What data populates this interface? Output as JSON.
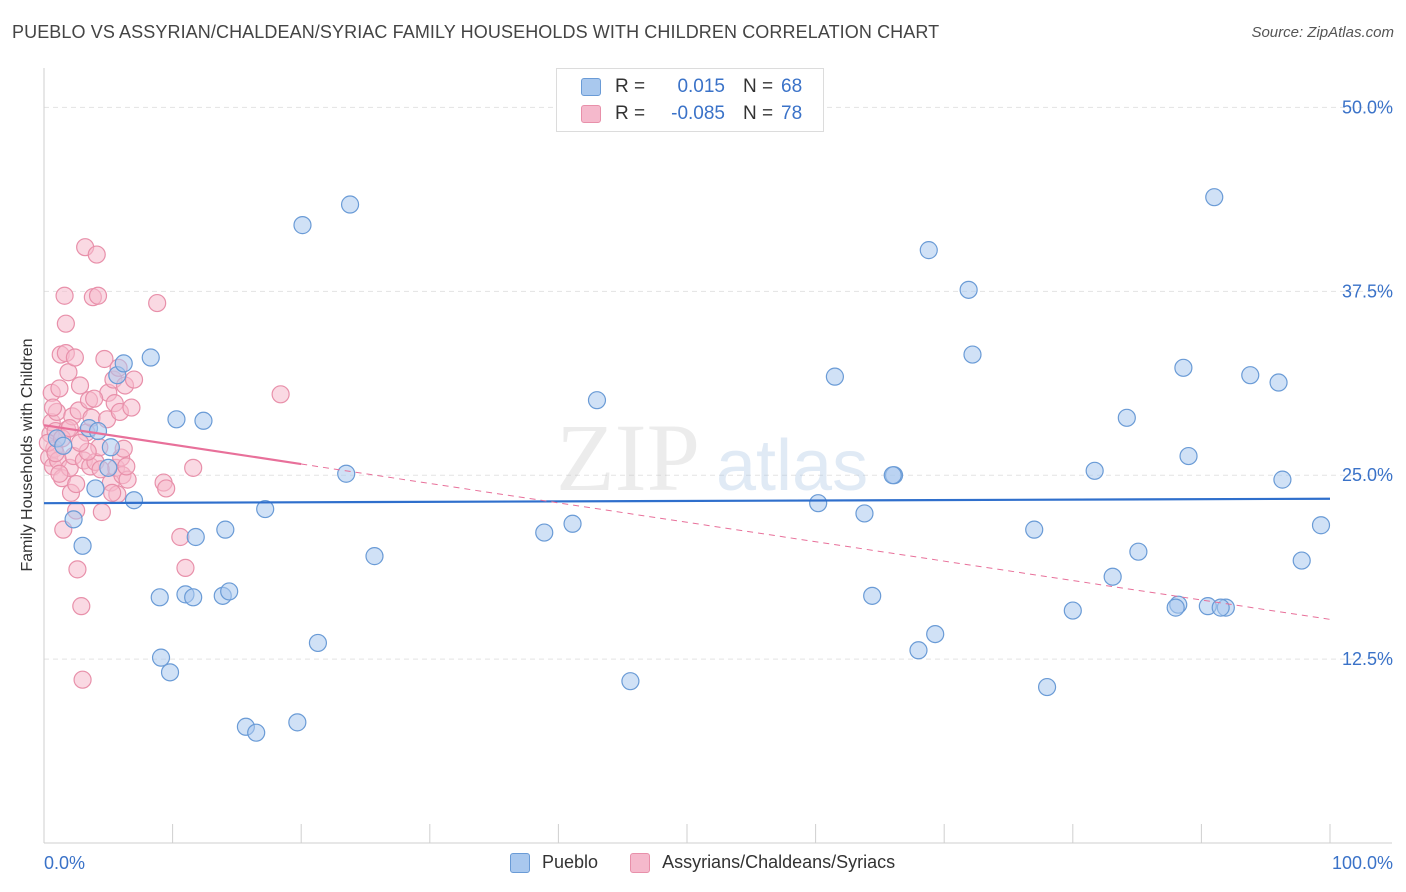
{
  "header": {
    "title": "PUEBLO VS ASSYRIAN/CHALDEAN/SYRIAC FAMILY HOUSEHOLDS WITH CHILDREN CORRELATION CHART",
    "source": "Source: ZipAtlas.com"
  },
  "watermark": {
    "zip": "ZIP",
    "atlas": "atlas"
  },
  "legend": {
    "rows": [
      {
        "r_label": "R =",
        "r_value": "0.015",
        "n_label": "N =",
        "n_value": "68"
      },
      {
        "r_label": "R =",
        "r_value": "-0.085",
        "n_label": "N =",
        "n_value": "78"
      }
    ]
  },
  "colors": {
    "pueblo_fill": "#a9c8ee",
    "pueblo_stroke": "#6a9bd6",
    "pueblo_line": "#2f6fcc",
    "assyrian_fill": "#f5b9cc",
    "assyrian_stroke": "#e890aa",
    "assyrian_line": "#e8709a",
    "tick_label": "#3a72c8",
    "grid": "#e3e3e3"
  },
  "chart_data": {
    "type": "scatter",
    "title": "PUEBLO VS ASSYRIAN/CHALDEAN/SYRIAC FAMILY HOUSEHOLDS WITH CHILDREN CORRELATION CHART",
    "xlabel": "",
    "ylabel": "Family Households with Children",
    "xlim": [
      0,
      100
    ],
    "ylim": [
      0,
      52
    ],
    "x_tick_labels": [
      {
        "value": 0,
        "label": "0.0%"
      },
      {
        "value": 100,
        "label": "100.0%"
      }
    ],
    "y_ticks": [
      {
        "value": 12.5,
        "label": "12.5%"
      },
      {
        "value": 25,
        "label": "25.0%"
      },
      {
        "value": 37.5,
        "label": "37.5%"
      },
      {
        "value": 50,
        "label": "50.0%"
      }
    ],
    "series": [
      {
        "name": "Pueblo",
        "r": 0.015,
        "n": 68,
        "trend": {
          "x": [
            0,
            100
          ],
          "y": [
            23.1,
            23.4
          ],
          "dashed_from": null
        },
        "points": [
          [
            1.0,
            27.5
          ],
          [
            1.5,
            27.0
          ],
          [
            2.3,
            22.0
          ],
          [
            3.0,
            20.2
          ],
          [
            3.5,
            28.2
          ],
          [
            4.0,
            24.1
          ],
          [
            4.2,
            28.0
          ],
          [
            5.0,
            25.5
          ],
          [
            5.2,
            26.9
          ],
          [
            5.7,
            31.8
          ],
          [
            6.2,
            32.6
          ],
          [
            7.0,
            23.3
          ],
          [
            8.3,
            33.0
          ],
          [
            9.0,
            16.7
          ],
          [
            9.1,
            12.6
          ],
          [
            9.8,
            11.6
          ],
          [
            10.3,
            28.8
          ],
          [
            11.0,
            16.9
          ],
          [
            11.6,
            16.7
          ],
          [
            11.8,
            20.8
          ],
          [
            12.4,
            28.7
          ],
          [
            13.9,
            16.8
          ],
          [
            14.1,
            21.3
          ],
          [
            14.4,
            17.1
          ],
          [
            15.7,
            7.9
          ],
          [
            16.5,
            7.5
          ],
          [
            17.2,
            22.7
          ],
          [
            19.7,
            8.2
          ],
          [
            20.1,
            42.0
          ],
          [
            21.3,
            13.6
          ],
          [
            23.5,
            25.1
          ],
          [
            23.8,
            43.4
          ],
          [
            25.7,
            19.5
          ],
          [
            38.9,
            21.1
          ],
          [
            41.1,
            21.7
          ],
          [
            43.0,
            30.1
          ],
          [
            45.6,
            11.0
          ],
          [
            60.2,
            23.1
          ],
          [
            61.5,
            31.7
          ],
          [
            63.8,
            22.4
          ],
          [
            64.4,
            16.8
          ],
          [
            66.1,
            25.0
          ],
          [
            68.0,
            13.1
          ],
          [
            68.8,
            40.3
          ],
          [
            69.3,
            14.2
          ],
          [
            71.9,
            37.6
          ],
          [
            72.2,
            33.2
          ],
          [
            77.0,
            21.3
          ],
          [
            78.0,
            10.6
          ],
          [
            80.0,
            15.8
          ],
          [
            81.7,
            25.3
          ],
          [
            83.1,
            18.1
          ],
          [
            84.2,
            28.9
          ],
          [
            85.1,
            19.8
          ],
          [
            88.2,
            16.2
          ],
          [
            88.6,
            32.3
          ],
          [
            89.0,
            26.3
          ],
          [
            90.5,
            16.1
          ],
          [
            91.0,
            43.9
          ],
          [
            91.9,
            16.0
          ],
          [
            93.8,
            31.8
          ],
          [
            96.0,
            31.3
          ],
          [
            96.3,
            24.7
          ],
          [
            97.8,
            19.2
          ],
          [
            99.3,
            21.6
          ],
          [
            88.0,
            16.0
          ],
          [
            91.5,
            16.0
          ],
          [
            66.0,
            25.0
          ]
        ]
      },
      {
        "name": "Assyrians/Chaldeans/Syriacs",
        "r": -0.085,
        "n": 78,
        "trend": {
          "x": [
            0,
            100
          ],
          "y": [
            28.4,
            15.2
          ],
          "solid_until": 20
        },
        "points": [
          [
            0.4,
            26.2
          ],
          [
            0.5,
            27.8
          ],
          [
            0.6,
            28.6
          ],
          [
            0.6,
            30.6
          ],
          [
            0.7,
            25.6
          ],
          [
            0.8,
            26.8
          ],
          [
            0.9,
            28.0
          ],
          [
            1.0,
            29.3
          ],
          [
            1.1,
            26.0
          ],
          [
            1.2,
            30.9
          ],
          [
            1.3,
            33.2
          ],
          [
            1.4,
            24.8
          ],
          [
            1.5,
            21.3
          ],
          [
            1.6,
            37.2
          ],
          [
            1.7,
            35.3
          ],
          [
            1.7,
            33.3
          ],
          [
            1.8,
            28.1
          ],
          [
            1.9,
            32.0
          ],
          [
            2.0,
            25.5
          ],
          [
            2.1,
            23.8
          ],
          [
            2.2,
            29.0
          ],
          [
            2.3,
            26.3
          ],
          [
            2.4,
            33.0
          ],
          [
            2.5,
            24.4
          ],
          [
            2.6,
            18.6
          ],
          [
            2.7,
            29.4
          ],
          [
            2.8,
            31.1
          ],
          [
            2.9,
            16.1
          ],
          [
            3.0,
            11.1
          ],
          [
            3.1,
            26.0
          ],
          [
            3.2,
            40.5
          ],
          [
            3.3,
            27.9
          ],
          [
            3.5,
            30.1
          ],
          [
            3.6,
            25.6
          ],
          [
            3.7,
            28.9
          ],
          [
            3.8,
            37.1
          ],
          [
            4.0,
            25.9
          ],
          [
            4.1,
            40.0
          ],
          [
            4.2,
            37.2
          ],
          [
            4.3,
            26.9
          ],
          [
            4.5,
            22.5
          ],
          [
            4.7,
            32.9
          ],
          [
            4.9,
            28.8
          ],
          [
            5.0,
            30.6
          ],
          [
            5.2,
            24.5
          ],
          [
            5.4,
            31.5
          ],
          [
            5.5,
            29.9
          ],
          [
            5.6,
            25.5
          ],
          [
            5.7,
            23.7
          ],
          [
            5.8,
            32.3
          ],
          [
            5.9,
            29.3
          ],
          [
            6.0,
            26.2
          ],
          [
            6.1,
            25.0
          ],
          [
            6.2,
            26.8
          ],
          [
            6.3,
            31.1
          ],
          [
            6.5,
            24.7
          ],
          [
            6.8,
            29.6
          ],
          [
            7.0,
            31.5
          ],
          [
            8.8,
            36.7
          ],
          [
            9.3,
            24.5
          ],
          [
            9.5,
            24.1
          ],
          [
            10.6,
            20.8
          ],
          [
            11.0,
            18.7
          ],
          [
            11.6,
            25.5
          ],
          [
            18.4,
            30.5
          ],
          [
            0.3,
            27.2
          ],
          [
            0.9,
            26.5
          ],
          [
            1.4,
            27.5
          ],
          [
            2.0,
            28.2
          ],
          [
            3.4,
            26.6
          ],
          [
            4.4,
            25.4
          ],
          [
            5.3,
            23.8
          ],
          [
            2.5,
            22.6
          ],
          [
            1.2,
            25.1
          ],
          [
            6.4,
            25.6
          ],
          [
            3.9,
            30.2
          ],
          [
            0.7,
            29.6
          ],
          [
            2.8,
            27.2
          ]
        ]
      }
    ],
    "legend_position": "top-center"
  },
  "bottom_legend": [
    {
      "label": "Pueblo"
    },
    {
      "label": "Assyrians/Chaldeans/Syriacs"
    }
  ]
}
